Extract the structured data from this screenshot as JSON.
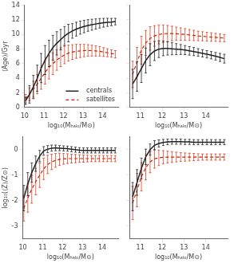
{
  "chart_data": [
    {
      "type": "line",
      "xlabel": "log₁₀(Mₕₐₗₒ/M⊙)",
      "ylabel": "⟨Age⟩/Gyr",
      "xlim": [
        10,
        14.8
      ],
      "ylim": [
        0,
        14
      ],
      "xticks": [
        10,
        11,
        12,
        13,
        14
      ],
      "yticks": [
        0,
        2,
        4,
        6,
        8,
        10,
        12,
        14
      ],
      "grid": false,
      "legend": "lower right",
      "x": [
        10.05,
        10.25,
        10.45,
        10.65,
        10.85,
        11.05,
        11.25,
        11.45,
        11.65,
        11.85,
        12.05,
        12.25,
        12.45,
        12.65,
        12.85,
        13.05,
        13.25,
        13.45,
        13.65,
        13.85,
        14.05,
        14.25,
        14.45,
        14.65
      ],
      "series": [
        {
          "name": "   centrals",
          "color": "#222222",
          "line_style": "solid",
          "values": [
            0.9,
            1.8,
            2.8,
            4.0,
            5.4,
            6.5,
            7.4,
            8.2,
            8.8,
            9.3,
            9.8,
            10.2,
            10.5,
            10.75,
            10.95,
            11.1,
            11.25,
            11.35,
            11.45,
            11.55,
            11.62,
            11.68,
            11.72,
            11.78
          ],
          "errors": [
            0.5,
            1.2,
            1.6,
            1.8,
            2.0,
            2.0,
            1.8,
            1.7,
            1.6,
            1.4,
            1.3,
            1.2,
            1.0,
            0.95,
            0.9,
            0.85,
            0.8,
            0.75,
            0.7,
            0.65,
            0.6,
            0.55,
            0.5,
            0.45
          ]
        },
        {
          "name": "   satellites",
          "color": "#cc2200",
          "line_style": "dashed",
          "values": [
            1.2,
            1.8,
            2.5,
            3.2,
            4.0,
            4.8,
            5.5,
            6.0,
            6.5,
            6.9,
            7.2,
            7.45,
            7.6,
            7.7,
            7.75,
            7.8,
            7.82,
            7.8,
            7.75,
            7.7,
            7.6,
            7.5,
            7.4,
            7.3
          ],
          "errors": [
            0.6,
            0.9,
            1.1,
            1.3,
            1.5,
            1.6,
            1.6,
            1.5,
            1.4,
            1.3,
            1.2,
            1.1,
            1.0,
            0.95,
            0.9,
            0.85,
            0.8,
            0.75,
            0.7,
            0.65,
            0.6,
            0.55,
            0.5,
            0.5
          ]
        }
      ]
    },
    {
      "type": "line",
      "xlabel": "log₁₀(Mₕₐₗₒ/M⊙)",
      "xlim": [
        10.5,
        15
      ],
      "ylim": [
        -2,
        12
      ],
      "xticks": [
        11,
        12,
        13,
        14
      ],
      "yticks": [
        -2,
        0,
        2,
        4,
        6,
        8,
        10,
        12
      ],
      "grid": false,
      "tick_labels": "x",
      "x": [
        10.65,
        10.85,
        11.05,
        11.25,
        11.45,
        11.65,
        11.85,
        12.05,
        12.25,
        12.45,
        12.65,
        12.85,
        13.05,
        13.25,
        13.45,
        13.65,
        13.85,
        14.05,
        14.25,
        14.45,
        14.65,
        14.85
      ],
      "series": [
        {
          "color": "#222222",
          "line_style": "solid",
          "values": [
            1.2,
            2.2,
            3.3,
            4.4,
            5.2,
            5.7,
            5.95,
            6.05,
            6.05,
            6.0,
            5.95,
            5.9,
            5.82,
            5.72,
            5.62,
            5.5,
            5.38,
            5.25,
            5.12,
            4.98,
            4.82,
            4.65
          ],
          "errors": [
            2.0,
            2.0,
            1.9,
            1.7,
            1.5,
            1.3,
            1.15,
            1.0,
            0.9,
            0.82,
            0.75,
            0.68,
            0.62,
            0.58,
            0.55,
            0.52,
            0.5,
            0.5,
            0.5,
            0.52,
            0.55,
            0.6
          ]
        },
        {
          "color": "#cc2200",
          "line_style": "dashed",
          "values": [
            2.5,
            4.2,
            5.8,
            6.8,
            7.4,
            7.75,
            7.95,
            8.05,
            8.08,
            8.08,
            8.05,
            8.0,
            7.95,
            7.88,
            7.82,
            7.75,
            7.7,
            7.65,
            7.6,
            7.55,
            7.5,
            7.45
          ],
          "errors": [
            1.8,
            2.0,
            1.9,
            1.7,
            1.6,
            1.4,
            1.3,
            1.2,
            1.1,
            1.0,
            0.9,
            0.85,
            0.8,
            0.75,
            0.7,
            0.65,
            0.62,
            0.6,
            0.58,
            0.55,
            0.52,
            0.5
          ]
        }
      ]
    },
    {
      "type": "line",
      "xlabel": "log₁₀(Mₕₐₗₒ/M⊙)",
      "ylabel": "log₁₀(⟨Z⟩/Z⊙)",
      "xlim": [
        10,
        14.8
      ],
      "ylim": [
        -3.5,
        0.5
      ],
      "xticks": [
        10,
        11,
        12,
        13,
        14
      ],
      "yticks": [
        -3,
        -2,
        -1,
        0
      ],
      "grid": false,
      "x": [
        10.05,
        10.25,
        10.45,
        10.65,
        10.85,
        11.05,
        11.25,
        11.45,
        11.65,
        11.85,
        12.05,
        12.25,
        12.45,
        12.65,
        12.85,
        13.05,
        13.25,
        13.45,
        13.65,
        13.85,
        14.05,
        14.25,
        14.45,
        14.65
      ],
      "series": [
        {
          "color": "#222222",
          "line_style": "solid",
          "values": [
            -1.9,
            -1.35,
            -0.9,
            -0.55,
            -0.25,
            -0.05,
            0.02,
            0.06,
            0.07,
            0.06,
            0.05,
            0.04,
            0.02,
            0.0,
            -0.02,
            -0.03,
            -0.03,
            -0.03,
            -0.03,
            -0.03,
            -0.03,
            -0.03,
            -0.03,
            -0.03
          ],
          "errors": [
            0.5,
            0.45,
            0.38,
            0.3,
            0.22,
            0.17,
            0.14,
            0.12,
            0.11,
            0.1,
            0.1,
            0.1,
            0.1,
            0.1,
            0.1,
            0.1,
            0.1,
            0.1,
            0.1,
            0.1,
            0.1,
            0.1,
            0.1,
            0.1
          ]
        },
        {
          "color": "#cc2200",
          "line_style": "dashed",
          "values": [
            -2.3,
            -1.9,
            -1.55,
            -1.25,
            -1.0,
            -0.75,
            -0.58,
            -0.48,
            -0.42,
            -0.38,
            -0.36,
            -0.35,
            -0.35,
            -0.35,
            -0.35,
            -0.35,
            -0.35,
            -0.35,
            -0.35,
            -0.35,
            -0.35,
            -0.35,
            -0.35,
            -0.35
          ],
          "errors": [
            0.5,
            0.55,
            0.55,
            0.52,
            0.48,
            0.42,
            0.36,
            0.3,
            0.27,
            0.24,
            0.21,
            0.19,
            0.17,
            0.16,
            0.15,
            0.14,
            0.13,
            0.12,
            0.12,
            0.12,
            0.12,
            0.12,
            0.12,
            0.12
          ]
        }
      ]
    },
    {
      "type": "line",
      "xlabel": "log₁₀(Mₕₐₗₒ/M⊙)",
      "xlim": [
        10.5,
        15
      ],
      "ylim": [
        -3.5,
        0.5
      ],
      "xticks": [
        11,
        12,
        13,
        14
      ],
      "yticks": [
        -3,
        -2,
        -1,
        0
      ],
      "grid": false,
      "tick_labels": "x",
      "x": [
        10.65,
        10.85,
        11.05,
        11.25,
        11.45,
        11.65,
        11.85,
        12.05,
        12.25,
        12.45,
        12.65,
        12.85,
        13.05,
        13.25,
        13.45,
        13.65,
        13.85,
        14.05,
        14.25,
        14.45,
        14.65,
        14.85
      ],
      "series": [
        {
          "color": "#222222",
          "line_style": "solid",
          "values": [
            -1.85,
            -1.3,
            -0.75,
            -0.3,
            -0.02,
            0.15,
            0.22,
            0.26,
            0.28,
            0.29,
            0.29,
            0.29,
            0.28,
            0.28,
            0.27,
            0.27,
            0.27,
            0.27,
            0.27,
            0.27,
            0.27,
            0.27
          ],
          "errors": [
            0.55,
            0.5,
            0.4,
            0.3,
            0.22,
            0.18,
            0.14,
            0.12,
            0.11,
            0.1,
            0.1,
            0.1,
            0.1,
            0.1,
            0.1,
            0.1,
            0.1,
            0.1,
            0.1,
            0.1,
            0.1,
            0.1
          ]
        },
        {
          "color": "#cc2200",
          "line_style": "dashed",
          "values": [
            -2.1,
            -1.6,
            -1.08,
            -0.72,
            -0.5,
            -0.38,
            -0.34,
            -0.32,
            -0.31,
            -0.31,
            -0.31,
            -0.31,
            -0.31,
            -0.31,
            -0.31,
            -0.31,
            -0.31,
            -0.31,
            -0.31,
            -0.31,
            -0.31,
            -0.31
          ],
          "errors": [
            0.65,
            0.65,
            0.55,
            0.48,
            0.42,
            0.36,
            0.3,
            0.26,
            0.23,
            0.21,
            0.19,
            0.17,
            0.16,
            0.15,
            0.14,
            0.13,
            0.12,
            0.12,
            0.12,
            0.12,
            0.12,
            0.12
          ]
        }
      ]
    }
  ]
}
